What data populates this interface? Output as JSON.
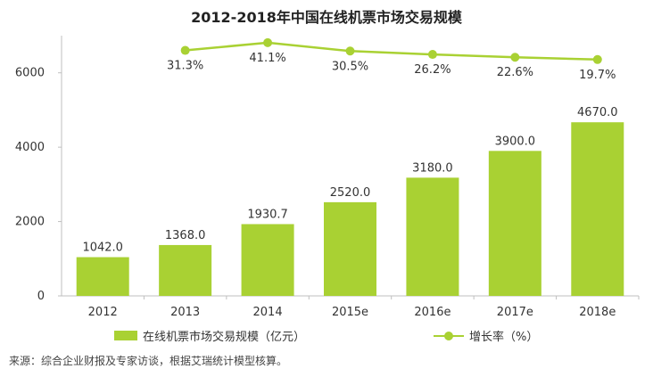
{
  "title": "2012-2018年中国在线机票市场交易规模",
  "source": "来源：综合企业财报及专家访谈，根据艾瑞统计模型核算。",
  "legend": {
    "bar_label": "在线机票市场交易规模（亿元）",
    "line_label": "增长率（%）"
  },
  "colors": {
    "bar": "#a9d133",
    "line": "#a9d133",
    "axis": "#bfbfbf"
  },
  "chart_data": {
    "type": "bar",
    "categories": [
      "2012",
      "2013",
      "2014",
      "2015e",
      "2016e",
      "2017e",
      "2018e"
    ],
    "series": [
      {
        "name": "在线机票市场交易规模（亿元）",
        "type": "bar",
        "values": [
          1042.0,
          1368.0,
          1930.7,
          2520.0,
          3180.0,
          3900.0,
          4670.0
        ],
        "value_labels": [
          "1042.0",
          "1368.0",
          "1930.7",
          "2520.0",
          "3180.0",
          "3900.0",
          "4670.0"
        ]
      },
      {
        "name": "增长率（%）",
        "type": "line",
        "values": [
          null,
          31.3,
          41.1,
          30.5,
          26.2,
          22.6,
          19.7
        ],
        "value_labels": [
          "",
          "31.3%",
          "41.1%",
          "30.5%",
          "26.2%",
          "22.6%",
          "19.7%"
        ]
      }
    ],
    "y_ticks": [
      "0",
      "2000",
      "4000",
      "6000"
    ],
    "ylim": [
      0,
      7000
    ],
    "y2lim": [
      -280,
      50
    ],
    "grid": false,
    "legend_position": "bottom"
  }
}
